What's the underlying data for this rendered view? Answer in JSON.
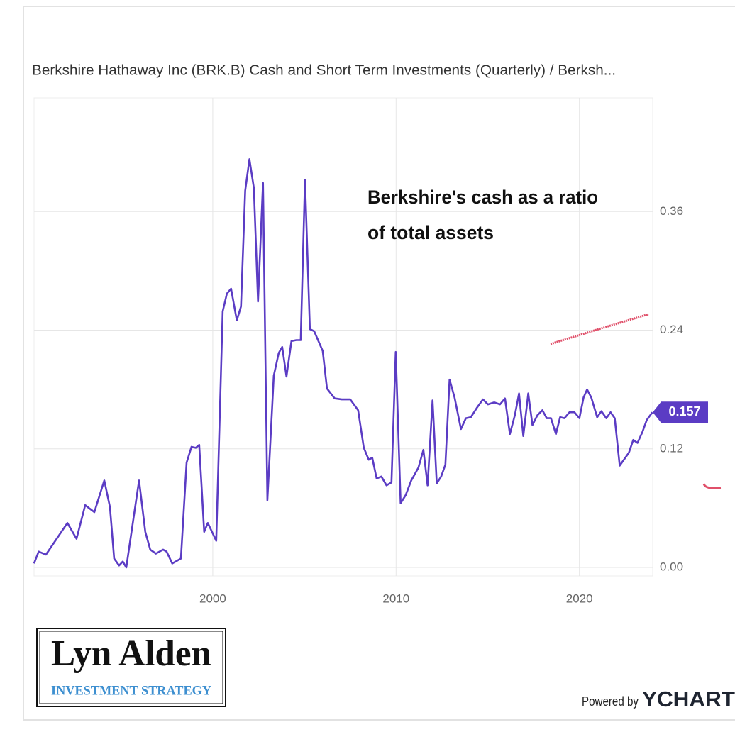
{
  "chart_data": {
    "type": "line",
    "title": "Berkshire Hathaway Inc (BRK.B) Cash and Short Term Investments (Quarterly) / Berksh...",
    "annotation": [
      "Berkshire's cash as a ratio",
      "of total assets"
    ],
    "logo": {
      "name": "Lyn Alden",
      "tagline": "INVESTMENT STRATEGY"
    },
    "credit": {
      "prefix": "Powered by",
      "brand": "YCHART"
    },
    "color": "#5b3cc4",
    "grid": true,
    "xlim": [
      1990.25,
      2024
    ],
    "xticks": [
      2000,
      2010,
      2020
    ],
    "ylim": [
      -0.0086,
      0.475
    ],
    "yticks": [
      {
        "value": 0,
        "label": "0.00"
      },
      0.12,
      0.24,
      0.36
    ],
    "x": [
      1990.25,
      1990.5,
      1990.9,
      1992.07,
      1992.57,
      1993.04,
      1993.54,
      1994.08,
      1994.39,
      1994.62,
      1994.89,
      1995.09,
      1995.28,
      1995.98,
      1996.32,
      1996.59,
      1996.9,
      1997.29,
      1997.48,
      1997.79,
      1998.26,
      1998.57,
      1998.84,
      1999.07,
      1999.26,
      1999.53,
      1999.73,
      2000.19,
      2000.54,
      2000.77,
      2001.0,
      2001.31,
      2001.54,
      2001.77,
      2002.0,
      2002.24,
      2002.47,
      2002.74,
      2002.98,
      2003.33,
      2003.6,
      2003.79,
      2004.02,
      2004.29,
      2004.56,
      2004.8,
      2005.03,
      2005.3,
      2005.53,
      2006.0,
      2006.23,
      2006.65,
      2007.04,
      2007.5,
      2007.93,
      2008.24,
      2008.51,
      2008.7,
      2008.94,
      2009.2,
      2009.48,
      2009.75,
      2009.98,
      2010.25,
      2010.52,
      2010.83,
      2011.22,
      2011.49,
      2011.72,
      2011.99,
      2012.22,
      2012.46,
      2012.69,
      2012.92,
      2013.19,
      2013.54,
      2013.81,
      2014.08,
      2014.43,
      2014.74,
      2015.01,
      2015.36,
      2015.67,
      2015.94,
      2016.21,
      2016.48,
      2016.71,
      2016.94,
      2017.21,
      2017.44,
      2017.71,
      2017.98,
      2018.22,
      2018.45,
      2018.72,
      2018.95,
      2019.19,
      2019.46,
      2019.73,
      2020.0,
      2020.23,
      2020.42,
      2020.65,
      2020.97,
      2021.2,
      2021.47,
      2021.7,
      2021.93,
      2022.2,
      2022.43,
      2022.7,
      2022.94,
      2023.17,
      2023.44,
      2023.67,
      2023.98
    ],
    "values": [
      0.004,
      0.016,
      0.013,
      0.045,
      0.029,
      0.063,
      0.056,
      0.088,
      0.061,
      0.009,
      0.002,
      0.006,
      0.0,
      0.088,
      0.036,
      0.018,
      0.014,
      0.018,
      0.016,
      0.004,
      0.009,
      0.106,
      0.122,
      0.121,
      0.124,
      0.036,
      0.045,
      0.027,
      0.259,
      0.277,
      0.282,
      0.25,
      0.264,
      0.381,
      0.413,
      0.384,
      0.269,
      0.389,
      0.068,
      0.194,
      0.217,
      0.223,
      0.193,
      0.229,
      0.23,
      0.23,
      0.392,
      0.241,
      0.239,
      0.219,
      0.181,
      0.171,
      0.17,
      0.17,
      0.159,
      0.121,
      0.109,
      0.111,
      0.09,
      0.092,
      0.083,
      0.086,
      0.218,
      0.065,
      0.073,
      0.088,
      0.101,
      0.119,
      0.083,
      0.169,
      0.085,
      0.092,
      0.104,
      0.19,
      0.172,
      0.14,
      0.151,
      0.152,
      0.162,
      0.17,
      0.165,
      0.167,
      0.165,
      0.171,
      0.135,
      0.154,
      0.176,
      0.133,
      0.176,
      0.144,
      0.154,
      0.159,
      0.151,
      0.151,
      0.135,
      0.152,
      0.151,
      0.157,
      0.157,
      0.151,
      0.172,
      0.18,
      0.172,
      0.152,
      0.158,
      0.151,
      0.157,
      0.151,
      0.103,
      0.109,
      0.116,
      0.129,
      0.126,
      0.137,
      0.149,
      0.157
    ]
  }
}
